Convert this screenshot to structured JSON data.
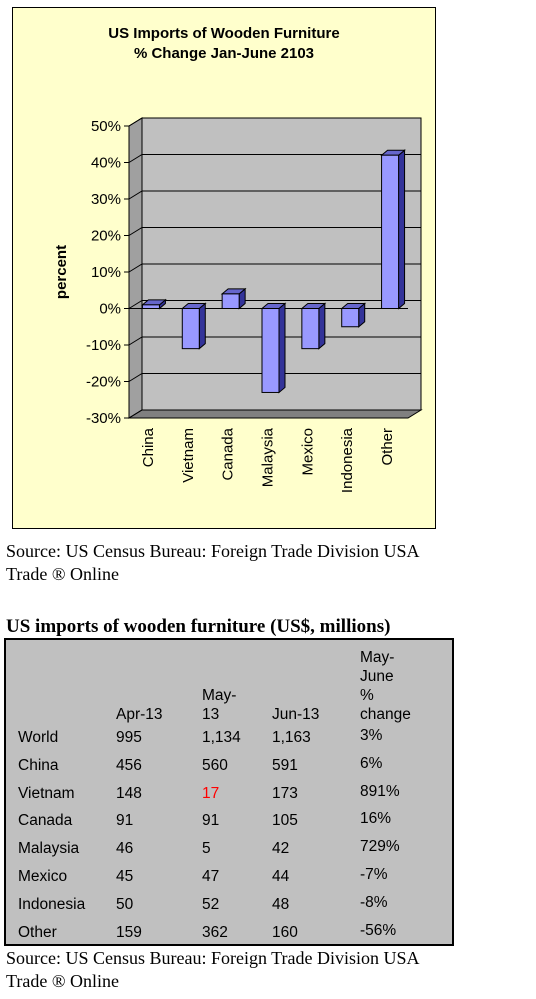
{
  "chart_data": {
    "type": "bar",
    "title": [
      "US Imports of Wooden Furniture",
      "% Change Jan-June 2103"
    ],
    "ylabel": "percent",
    "xlabel": "",
    "categories": [
      "China",
      "Vietnam",
      "Canada",
      "Malaysia",
      "Mexico",
      "Indonesia",
      "Other"
    ],
    "values": [
      1,
      -11,
      4,
      -23,
      -11,
      -5,
      42
    ],
    "ylim": [
      -30,
      50
    ],
    "yticks": [
      "-30%",
      "-20%",
      "-10%",
      "0%",
      "10%",
      "20%",
      "30%",
      "40%",
      "50%"
    ],
    "ytick_values": [
      -30,
      -20,
      -10,
      0,
      10,
      20,
      30,
      40,
      50
    ],
    "grid": true,
    "style": "3d",
    "colors": {
      "bar": "#9999ff",
      "bar_side": "#333399",
      "bar_top": "#6666cc",
      "wall": "#c0c0c0",
      "floor": "#808080",
      "background": "#ffffcc"
    }
  },
  "source_1": [
    "Source: US Census Bureau: Foreign Trade Division USA",
    "Trade ® Online"
  ],
  "table": {
    "title": "US imports of wooden furniture (US$, millions)",
    "headers": [
      [
        ""
      ],
      [
        "Apr-13"
      ],
      [
        "May-",
        "13"
      ],
      [
        "Jun-13"
      ],
      [
        "May-",
        "June",
        "%",
        "change"
      ]
    ],
    "rows": [
      [
        "World",
        "995",
        "1,134",
        "1,163",
        "3%"
      ],
      [
        "China",
        "456",
        "560",
        "591",
        "6%"
      ],
      [
        "Vietnam",
        "148",
        "17",
        "173",
        "891%"
      ],
      [
        "Canada",
        "91",
        "91",
        "105",
        "16%"
      ],
      [
        "Malaysia",
        "46",
        "5",
        "42",
        "729%"
      ],
      [
        "Mexico",
        "45",
        "47",
        "44",
        "-7%"
      ],
      [
        "Indonesia",
        "50",
        "52",
        "48",
        "-8%"
      ],
      [
        "Other",
        "159",
        "362",
        "160",
        "-56%"
      ]
    ],
    "highlight": {
      "row": 2,
      "col": 2,
      "color": "#ff0000"
    }
  },
  "source_2": [
    "Source: US Census Bureau: Foreign Trade Division USA",
    "Trade ® Online"
  ]
}
